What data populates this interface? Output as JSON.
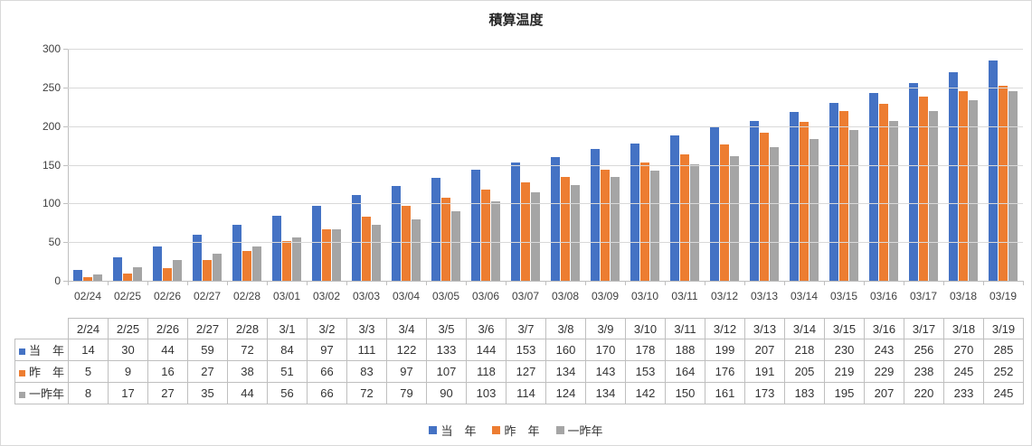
{
  "style": {
    "gridline": "#D9D9D9",
    "axis_line": "#BFBFBF",
    "table_border": "#BFBFBF",
    "text": "#404040",
    "background": "#FFFFFF",
    "frame_border": "#D9D9D9"
  },
  "chart_data": {
    "type": "bar",
    "title": "積算温度",
    "categories": [
      "02/24",
      "02/25",
      "02/26",
      "02/27",
      "02/28",
      "03/01",
      "03/02",
      "03/03",
      "03/04",
      "03/05",
      "03/06",
      "03/07",
      "03/08",
      "03/09",
      "03/10",
      "03/11",
      "03/12",
      "03/13",
      "03/14",
      "03/15",
      "03/16",
      "03/17",
      "03/18",
      "03/19"
    ],
    "table_categories": [
      "2/24",
      "2/25",
      "2/26",
      "2/27",
      "2/28",
      "3/1",
      "3/2",
      "3/3",
      "3/4",
      "3/5",
      "3/6",
      "3/7",
      "3/8",
      "3/9",
      "3/10",
      "3/11",
      "3/12",
      "3/13",
      "3/14",
      "3/15",
      "3/16",
      "3/17",
      "3/18",
      "3/19"
    ],
    "series": [
      {
        "name": "当　年",
        "color": "#4472C4",
        "values": [
          14,
          30,
          44,
          59,
          72,
          84,
          97,
          111,
          122,
          133,
          144,
          153,
          160,
          170,
          178,
          188,
          199,
          207,
          218,
          230,
          243,
          256,
          270,
          285
        ]
      },
      {
        "name": "昨　年",
        "color": "#ED7D31",
        "values": [
          5,
          9,
          16,
          27,
          38,
          51,
          66,
          83,
          97,
          107,
          118,
          127,
          134,
          143,
          153,
          164,
          176,
          191,
          205,
          219,
          229,
          238,
          245,
          252
        ]
      },
      {
        "name": "一昨年",
        "color": "#A5A5A5",
        "values": [
          8,
          17,
          27,
          35,
          44,
          56,
          66,
          72,
          79,
          90,
          103,
          114,
          124,
          134,
          142,
          150,
          161,
          173,
          183,
          195,
          207,
          220,
          233,
          245
        ]
      }
    ],
    "ylim": [
      0,
      300
    ],
    "yticks": [
      0,
      50,
      100,
      150,
      200,
      250,
      300
    ],
    "grid": true,
    "legend_position": "bottom",
    "xlabel": "",
    "ylabel": ""
  }
}
